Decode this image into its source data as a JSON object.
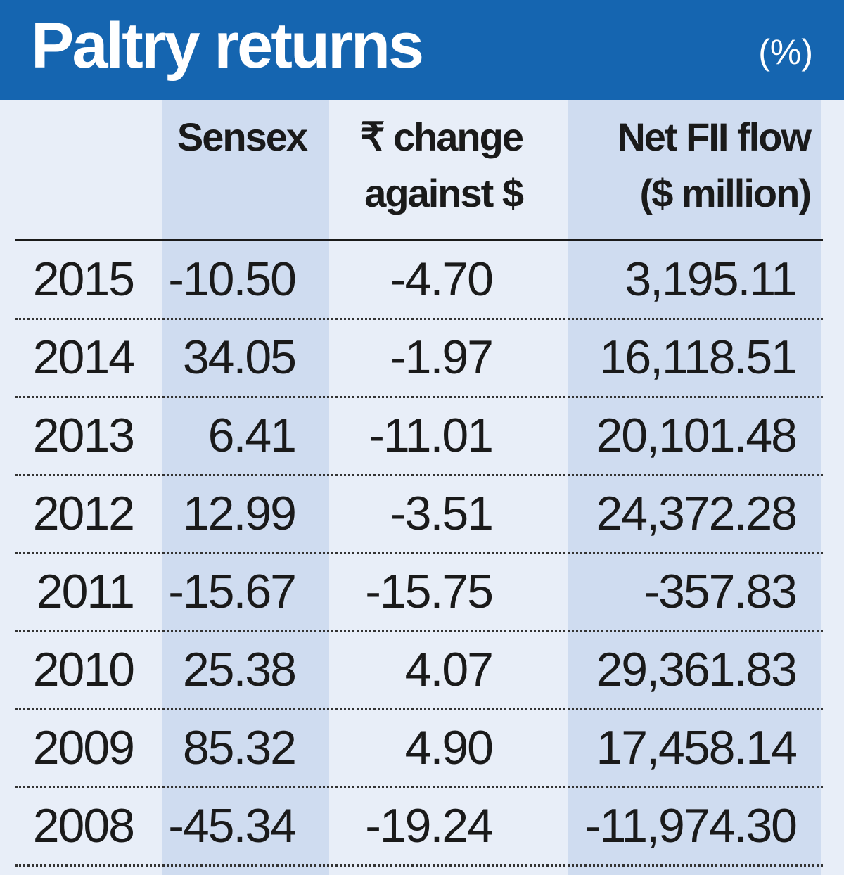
{
  "header": {
    "title": "Paltry returns",
    "unit": "(%)"
  },
  "colors": {
    "header_bg": "#1565b0",
    "page_bg": "#e8eef8",
    "column_shade": "#cfdcf0",
    "text": "#1a1a1a"
  },
  "chart_data": {
    "type": "table",
    "title": "Paltry returns",
    "unit": "(%)",
    "columns": [
      "",
      "Sensex",
      "₹ change against $",
      "Net FII flow ($ million)"
    ],
    "column_labels": {
      "sensex": "Sensex",
      "rupee_line1": "₹ change",
      "rupee_line2": "against $",
      "fii_line1": "Net FII flow",
      "fii_line2": "($ million)"
    },
    "rows": [
      {
        "year": "2015",
        "sensex": "-10.50",
        "rupee": "-4.70",
        "fii": "3,195.11"
      },
      {
        "year": "2014",
        "sensex": "34.05",
        "rupee": "-1.97",
        "fii": "16,118.51"
      },
      {
        "year": "2013",
        "sensex": "6.41",
        "rupee": "-11.01",
        "fii": "20,101.48"
      },
      {
        "year": "2012",
        "sensex": "12.99",
        "rupee": "-3.51",
        "fii": "24,372.28"
      },
      {
        "year": "2011",
        "sensex": "-15.67",
        "rupee": "-15.75",
        "fii": "-357.83"
      },
      {
        "year": "2010",
        "sensex": "25.38",
        "rupee": "4.07",
        "fii": "29,361.83"
      },
      {
        "year": "2009",
        "sensex": "85.32",
        "rupee": "4.90",
        "fii": "17,458.14"
      },
      {
        "year": "2008",
        "sensex": "-45.34",
        "rupee": "-19.24",
        "fii": "-11,974.30"
      }
    ]
  }
}
